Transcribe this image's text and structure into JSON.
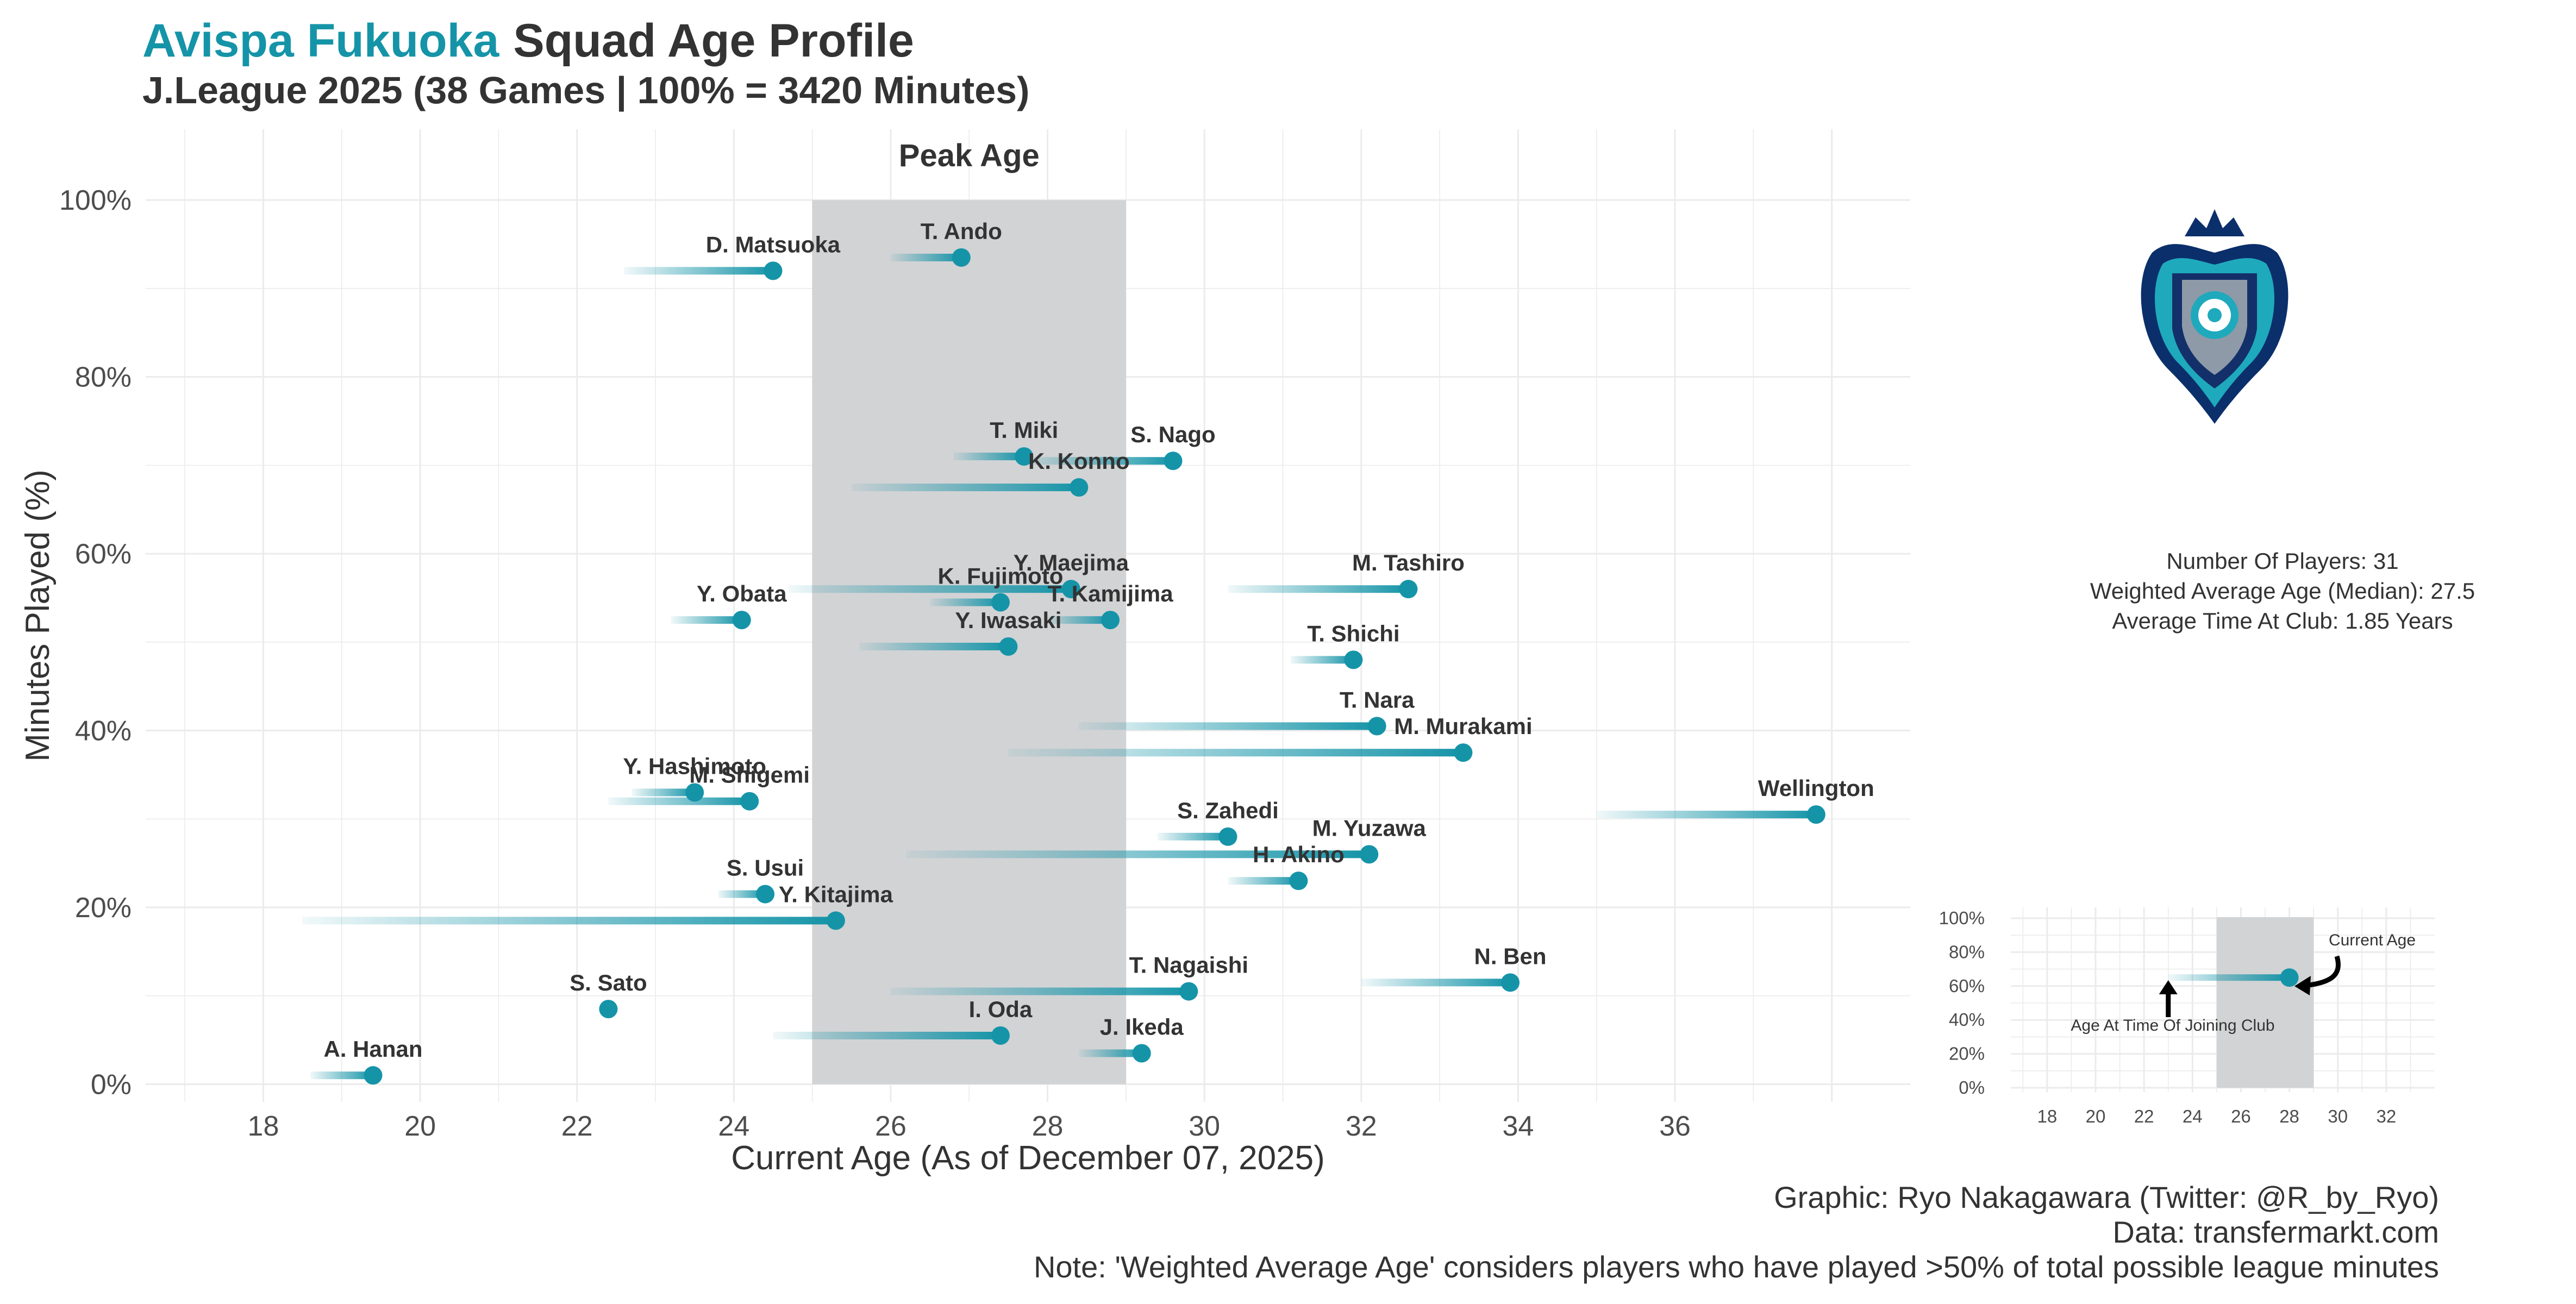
{
  "header": {
    "team": "Avispa Fukuoka",
    "title_rest": "Squad Age Profile",
    "subtitle": "J.League 2025 (38 Games | 100% = 3420 Minutes)"
  },
  "colors": {
    "accent": "#1594a8",
    "peak_band": "#d2d3d5",
    "text": "#333333",
    "grid": "#ebebeb"
  },
  "chart_data": {
    "type": "scatter",
    "xlabel": "Current Age (As of December 07, 2025)",
    "ylabel": "Minutes Played (%)",
    "xlim": [
      16.5,
      39
    ],
    "ylim": [
      -2,
      108
    ],
    "x_ticks": [
      18,
      20,
      22,
      24,
      26,
      28,
      30,
      32,
      34,
      36
    ],
    "y_ticks": [
      0,
      20,
      40,
      60,
      80,
      100
    ],
    "y_tick_labels": [
      "0%",
      "20%",
      "40%",
      "60%",
      "80%",
      "100%"
    ],
    "peak_age": {
      "label": "Peak Age",
      "range": [
        25,
        29
      ]
    },
    "grid": true,
    "players": [
      {
        "name": "D. Matsuoka",
        "age": 24.5,
        "joined_age": 22.6,
        "minutes_pct": 92
      },
      {
        "name": "T. Ando",
        "age": 26.9,
        "joined_age": 26.0,
        "minutes_pct": 93.5
      },
      {
        "name": "T. Miki",
        "age": 27.7,
        "joined_age": 26.8,
        "minutes_pct": 71
      },
      {
        "name": "S. Nago",
        "age": 29.6,
        "joined_age": 27.7,
        "minutes_pct": 70.5
      },
      {
        "name": "K. Konno",
        "age": 28.4,
        "joined_age": 25.5,
        "minutes_pct": 67.5
      },
      {
        "name": "Y. Maejima",
        "age": 28.3,
        "joined_age": 24.7,
        "minutes_pct": 56
      },
      {
        "name": "M. Tashiro",
        "age": 32.6,
        "joined_age": 30.3,
        "minutes_pct": 56
      },
      {
        "name": "K. Fujimoto",
        "age": 27.4,
        "joined_age": 26.5,
        "minutes_pct": 54.5
      },
      {
        "name": "Y. Obata",
        "age": 24.1,
        "joined_age": 23.2,
        "minutes_pct": 52.5
      },
      {
        "name": "T. Kamijima",
        "age": 28.8,
        "joined_age": 28.0,
        "minutes_pct": 52.5
      },
      {
        "name": "Y. Iwasaki",
        "age": 27.5,
        "joined_age": 25.6,
        "minutes_pct": 49.5
      },
      {
        "name": "T. Shichi",
        "age": 31.9,
        "joined_age": 31.1,
        "minutes_pct": 48
      },
      {
        "name": "T. Nara",
        "age": 32.2,
        "joined_age": 28.4,
        "minutes_pct": 40.5
      },
      {
        "name": "M. Murakami",
        "age": 33.3,
        "joined_age": 27.5,
        "minutes_pct": 37.5
      },
      {
        "name": "Y. Hashimoto",
        "age": 23.5,
        "joined_age": 22.7,
        "minutes_pct": 33
      },
      {
        "name": "M. Shigemi",
        "age": 24.2,
        "joined_age": 22.4,
        "minutes_pct": 32
      },
      {
        "name": "Wellington",
        "age": 37.8,
        "joined_age": 35.0,
        "minutes_pct": 30.5
      },
      {
        "name": "S. Zahedi",
        "age": 30.3,
        "joined_age": 29.4,
        "minutes_pct": 28
      },
      {
        "name": "M. Yuzawa",
        "age": 32.1,
        "joined_age": 26.2,
        "minutes_pct": 26
      },
      {
        "name": "H. Akino",
        "age": 31.2,
        "joined_age": 30.3,
        "minutes_pct": 23
      },
      {
        "name": "S. Usui",
        "age": 24.4,
        "joined_age": 23.8,
        "minutes_pct": 21.5
      },
      {
        "name": "Y. Kitajima",
        "age": 25.3,
        "joined_age": 18.5,
        "minutes_pct": 18.5
      },
      {
        "name": "N. Ben",
        "age": 33.9,
        "joined_age": 32.0,
        "minutes_pct": 11.5
      },
      {
        "name": "T. Nagaishi",
        "age": 29.8,
        "joined_age": 26.0,
        "minutes_pct": 10.5
      },
      {
        "name": "S. Sato",
        "age": 22.4,
        "joined_age": 22.4,
        "minutes_pct": 8.5
      },
      {
        "name": "I. Oda",
        "age": 27.4,
        "joined_age": 24.5,
        "minutes_pct": 5.5
      },
      {
        "name": "J. Ikeda",
        "age": 29.2,
        "joined_age": 28.4,
        "minutes_pct": 3.5
      },
      {
        "name": "A. Hanan",
        "age": 19.4,
        "joined_age": 18.6,
        "minutes_pct": 1
      }
    ]
  },
  "stats": {
    "players": "Number Of Players: 31",
    "weighted_age": "Weighted Average Age (Median): 27.5",
    "time_at_club": "Average Time At Club: 1.85 Years"
  },
  "legend": {
    "x_ticks": [
      18,
      20,
      22,
      24,
      26,
      28,
      30,
      32
    ],
    "y_tick_labels": [
      "0%",
      "20%",
      "40%",
      "60%",
      "80%",
      "100%"
    ],
    "peak_range": [
      25,
      29
    ],
    "example": {
      "joined_age": 23,
      "age": 28,
      "minutes_pct": 65
    },
    "current_age_label": "Current Age",
    "joined_age_label": "Age At Time Of Joining Club"
  },
  "footer": {
    "credit": "Graphic: Ryo Nakagawara (Twitter: @R_by_Ryo)",
    "source": "Data: transfermarkt.com",
    "note": "Note: 'Weighted Average Age' considers players who have played >50% of total possible league minutes"
  }
}
